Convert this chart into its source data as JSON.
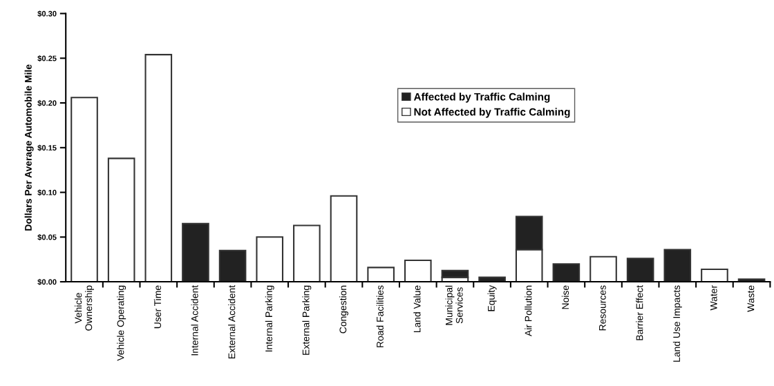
{
  "chart_data": {
    "type": "bar",
    "stacked": true,
    "ylabel": "Dollars Per Average Automobile Mile",
    "categories": [
      "Vehicle\nOwnership",
      "Vehicle Operating",
      "User Time",
      "Internal Accident",
      "External Accident",
      "Internal Parking",
      "External Parking",
      "Congestion",
      "Road Facilities",
      "Land Value",
      "Municipal\nServices",
      "Equity",
      "Air Pollution",
      "Noise",
      "Resources",
      "Barrier Effect",
      "Land Use Impacts",
      "Water",
      "Waste"
    ],
    "series": [
      {
        "name": "Not Affected by Traffic Calming",
        "color": "#ffffff",
        "values": [
          0.206,
          0.138,
          0.254,
          null,
          null,
          0.05,
          0.063,
          0.096,
          0.016,
          0.024,
          0.005,
          null,
          0.036,
          null,
          0.028,
          null,
          null,
          0.014,
          null
        ]
      },
      {
        "name": "Affected by Traffic Calming",
        "color": "#222222",
        "values": [
          null,
          null,
          null,
          0.065,
          0.035,
          null,
          null,
          null,
          null,
          null,
          0.0075,
          0.005,
          0.037,
          0.02,
          null,
          0.026,
          0.036,
          null,
          0.003
        ]
      }
    ],
    "ylim": [
      0,
      0.3
    ],
    "yticks": [
      {
        "value": 0,
        "label": "$0.00"
      },
      {
        "value": 0.05,
        "label": "$0.05"
      },
      {
        "value": 0.1,
        "label": "$0.10"
      },
      {
        "value": 0.15,
        "label": "$0.15"
      },
      {
        "value": 0.2,
        "label": "$0.20"
      },
      {
        "value": 0.25,
        "label": "$0.25"
      },
      {
        "value": 0.3,
        "label": "$0.30"
      }
    ],
    "legend": "top right",
    "grid": false
  }
}
